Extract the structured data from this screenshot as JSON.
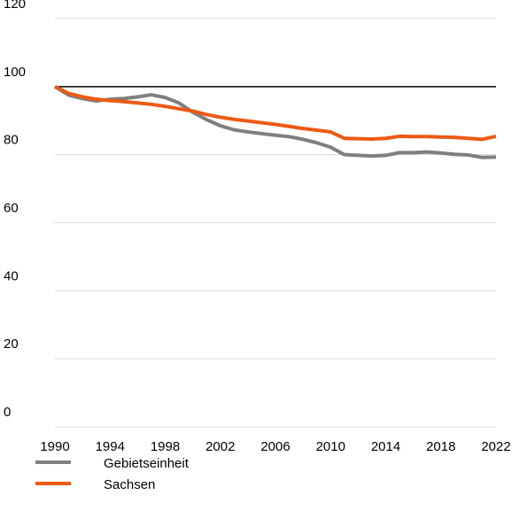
{
  "chart_data": {
    "type": "line",
    "x": [
      1990,
      1991,
      1992,
      1993,
      1994,
      1995,
      1996,
      1997,
      1998,
      1999,
      2000,
      2001,
      2002,
      2003,
      2004,
      2005,
      2006,
      2007,
      2008,
      2009,
      2010,
      2011,
      2012,
      2013,
      2014,
      2015,
      2016,
      2017,
      2018,
      2019,
      2020,
      2021,
      2022
    ],
    "series": [
      {
        "name": "Gebietseinheit",
        "color": "#7f7f7f",
        "values": [
          100,
          97.5,
          96.5,
          95.8,
          96.3,
          96.5,
          97,
          97.6,
          96.8,
          95.2,
          92.5,
          90.3,
          88.5,
          87.3,
          86.7,
          86.2,
          85.7,
          85.3,
          84.5,
          83.5,
          82.2,
          80,
          79.8,
          79.6,
          79.8,
          80.6,
          80.6,
          80.8,
          80.5,
          80.1,
          79.9,
          79.2,
          79.3
        ]
      },
      {
        "name": "Sachsen",
        "color": "#ec5a14",
        "values": [
          100,
          98,
          97,
          96.3,
          95.9,
          95.6,
          95.2,
          94.8,
          94.2,
          93.5,
          92.8,
          91.8,
          91,
          90.4,
          89.9,
          89.4,
          88.9,
          88.3,
          87.7,
          87.2,
          86.7,
          84.8,
          84.7,
          84.6,
          84.8,
          85.4,
          85.3,
          85.3,
          85.2,
          85.1,
          84.8,
          84.5,
          85.4
        ]
      }
    ],
    "xlim": [
      1990,
      2022
    ],
    "xticks": [
      1990,
      1994,
      1998,
      2002,
      2006,
      2010,
      2014,
      2018,
      2022
    ],
    "ylim": [
      0,
      120
    ],
    "yticks": [
      0,
      20,
      40,
      60,
      80,
      100,
      120
    ],
    "reference_line": 100,
    "grid": true,
    "legend": "bottom-left"
  }
}
